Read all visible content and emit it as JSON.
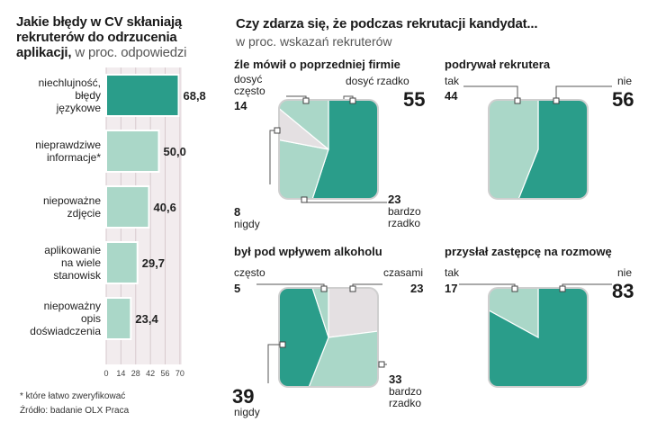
{
  "left": {
    "title_line1": "Jakie błędy w CV skłaniają",
    "title_line2": "rekruterów do odrzucenia",
    "title_line3": "aplikacji,",
    "title_sub": " w proc. odpowiedzi",
    "footnote": "* które łatwo zweryfikować",
    "source": "Źródło: badanie OLX Praca"
  },
  "right": {
    "title": "Czy zdarza się, że podczas rekrutacji kandydat...",
    "subtitle": "w proc. wskazań rekruterów"
  },
  "colors": {
    "teal": "#2a9d8a",
    "light": "#aad7c8",
    "grey": "#e4e0e2",
    "bg": "#f2ecee"
  },
  "chart_data": [
    {
      "type": "bar",
      "orientation": "horizontal",
      "title": "Jakie błędy w CV skłaniają rekruterów do odrzucenia aplikacji, w proc. odpowiedzi",
      "categories": [
        [
          "niechlujność,",
          "błędy",
          "językowe"
        ],
        [
          "nieprawdziwe",
          "informacje*"
        ],
        [
          "niepoważne",
          "zdjęcie"
        ],
        [
          "aplikowanie",
          "na wiele",
          "stanowisk"
        ],
        [
          "niepoważny",
          "opis",
          "doświadczenia"
        ]
      ],
      "values": [
        68.8,
        50.0,
        40.6,
        29.7,
        23.4
      ],
      "value_labels": [
        "68,8",
        "50,0",
        "40,6",
        "29,7",
        "23,4"
      ],
      "highlight": [
        true,
        false,
        false,
        false,
        false
      ],
      "xlim": [
        0,
        70
      ],
      "xticks": [
        "0",
        "14",
        "28",
        "42",
        "56",
        "70"
      ]
    },
    {
      "type": "pie",
      "title": "źle mówił o poprzedniej firmie",
      "slices": [
        {
          "name": "dosyć rzadko",
          "value": 55,
          "color": "#2a9d8a"
        },
        {
          "name": "bardzo rzadko",
          "value": 23,
          "color": "#aad7c8"
        },
        {
          "name": "nigdy",
          "value": 8,
          "color": "#e4e0e2"
        },
        {
          "name": "dosyć często",
          "value": 14,
          "color": "#aad7c8"
        }
      ]
    },
    {
      "type": "pie",
      "title": "podrywał rekrutera",
      "slices": [
        {
          "name": "nie",
          "value": 56,
          "color": "#2a9d8a"
        },
        {
          "name": "tak",
          "value": 44,
          "color": "#aad7c8"
        }
      ]
    },
    {
      "type": "pie",
      "title": "był pod wpływem alkoholu",
      "slices": [
        {
          "name": "czasami",
          "value": 23,
          "color": "#e4e0e2"
        },
        {
          "name": "bardzo rzadko",
          "value": 33,
          "color": "#aad7c8"
        },
        {
          "name": "nigdy",
          "value": 39,
          "color": "#2a9d8a"
        },
        {
          "name": "często",
          "value": 5,
          "color": "#aad7c8"
        }
      ]
    },
    {
      "type": "pie",
      "title": "przysłał zastępcę na rozmowę",
      "slices": [
        {
          "name": "nie",
          "value": 83,
          "color": "#2a9d8a"
        },
        {
          "name": "tak",
          "value": 17,
          "color": "#aad7c8"
        }
      ]
    }
  ],
  "pies": {
    "p1": {
      "title": "źle mówił o poprzedniej firmie",
      "l_dosyc": "dosyć",
      "l_czesto": "często",
      "v_czesto": "14",
      "l_dosyc_rzadko": "dosyć rzadko",
      "v_dosyc_rzadko": "55",
      "v_nigdy": "8",
      "l_nigdy": "nigdy",
      "v_bardzo": "23",
      "l_bardzo": "bardzo",
      "l_rzadko": "rzadko"
    },
    "p2": {
      "title": "podrywał rekrutera",
      "l_tak": "tak",
      "v_tak": "44",
      "l_nie": "nie",
      "v_nie": "56"
    },
    "p3": {
      "title": "był pod wpływem alkoholu",
      "l_czesto": "często",
      "v_czesto": "5",
      "l_czasami": "czasami",
      "v_czasami": "23",
      "v_nigdy": "39",
      "l_nigdy": "nigdy",
      "v_bardzo": "33",
      "l_bardzo": "bardzo",
      "l_rzadko": "rzadko"
    },
    "p4": {
      "title": "przysłał zastępcę na rozmowę",
      "l_tak": "tak",
      "v_tak": "17",
      "l_nie": "nie",
      "v_nie": "83"
    }
  }
}
